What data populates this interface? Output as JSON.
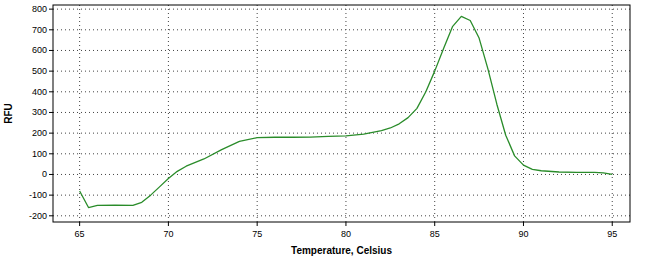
{
  "chart_data": {
    "type": "line",
    "x_label": "Temperature, Celsius",
    "y_label": "RFU",
    "x": [
      65,
      65.5,
      66,
      67,
      68,
      68.5,
      69,
      69.5,
      70,
      70.5,
      71,
      72,
      73,
      74,
      75,
      76,
      77,
      78,
      79,
      80,
      81,
      82,
      82.5,
      83,
      83.5,
      84,
      84.5,
      85,
      85.5,
      86,
      86.5,
      87,
      87.5,
      88,
      88.5,
      89,
      89.5,
      90,
      90.5,
      91,
      92,
      93,
      94,
      94.5,
      95
    ],
    "series": [
      {
        "name": "RFU",
        "color": "#2a8c2a",
        "values": [
          -80,
          -160,
          -150,
          -148,
          -150,
          -135,
          -100,
          -60,
          -20,
          15,
          40,
          75,
          120,
          160,
          178,
          180,
          180,
          181,
          184,
          187,
          195,
          212,
          225,
          245,
          275,
          320,
          400,
          500,
          610,
          715,
          765,
          745,
          660,
          510,
          340,
          190,
          90,
          45,
          25,
          18,
          12,
          10,
          10,
          8,
          0
        ]
      }
    ],
    "xlim": [
      63.5,
      96
    ],
    "ylim": [
      -230,
      820
    ],
    "xticks": [
      65,
      70,
      75,
      80,
      85,
      90,
      95
    ],
    "yticks": [
      -200,
      -100,
      0,
      100,
      200,
      300,
      400,
      500,
      600,
      700,
      800
    ],
    "grid": true
  }
}
